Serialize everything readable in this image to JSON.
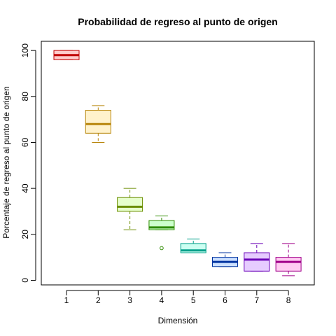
{
  "chart_data": {
    "type": "boxplot",
    "title": "Probabilidad de regreso al punto de origen",
    "xlabel": "Dimensión",
    "ylabel": "Porcentaje de regreso al punto de origen",
    "ylim": [
      -2,
      104
    ],
    "yticks": [
      0,
      20,
      40,
      60,
      80,
      100
    ],
    "grid": false,
    "categories": [
      "1",
      "2",
      "3",
      "4",
      "5",
      "6",
      "7",
      "8"
    ],
    "boxes": [
      {
        "category": "1",
        "whisker_low": 96,
        "q1": 96,
        "median": 98,
        "q3": 100,
        "whisker_high": 100,
        "outliers": [],
        "stroke": "#c00000",
        "fill": "#ffcccc"
      },
      {
        "category": "2",
        "whisker_low": 60,
        "q1": 64,
        "median": 68,
        "q3": 74,
        "whisker_high": 76,
        "outliers": [],
        "stroke": "#b8860b",
        "fill": "#fff2cc"
      },
      {
        "category": "3",
        "whisker_low": 22,
        "q1": 30,
        "median": 32,
        "q3": 36,
        "whisker_high": 40,
        "outliers": [],
        "stroke": "#6b8e00",
        "fill": "#e6ffcc"
      },
      {
        "category": "4",
        "whisker_low": 22,
        "q1": 22,
        "median": 23,
        "q3": 26,
        "whisker_high": 28,
        "outliers": [
          14
        ],
        "stroke": "#2e8b00",
        "fill": "#ccffcc"
      },
      {
        "category": "5",
        "whisker_low": 12,
        "q1": 12,
        "median": 13,
        "q3": 16,
        "whisker_high": 18,
        "outliers": [],
        "stroke": "#00a08a",
        "fill": "#ccfff2"
      },
      {
        "category": "6",
        "whisker_low": 6,
        "q1": 6,
        "median": 8,
        "q3": 10,
        "whisker_high": 12,
        "outliers": [],
        "stroke": "#0033a0",
        "fill": "#cce0ff"
      },
      {
        "category": "7",
        "whisker_low": 4,
        "q1": 4,
        "median": 9,
        "q3": 12,
        "whisker_high": 16,
        "outliers": [],
        "stroke": "#6a00b8",
        "fill": "#e6ccff"
      },
      {
        "category": "8",
        "whisker_low": 2,
        "q1": 4,
        "median": 8,
        "q3": 10,
        "whisker_high": 16,
        "outliers": [],
        "stroke": "#a0008a",
        "fill": "#ffccf2"
      }
    ]
  }
}
